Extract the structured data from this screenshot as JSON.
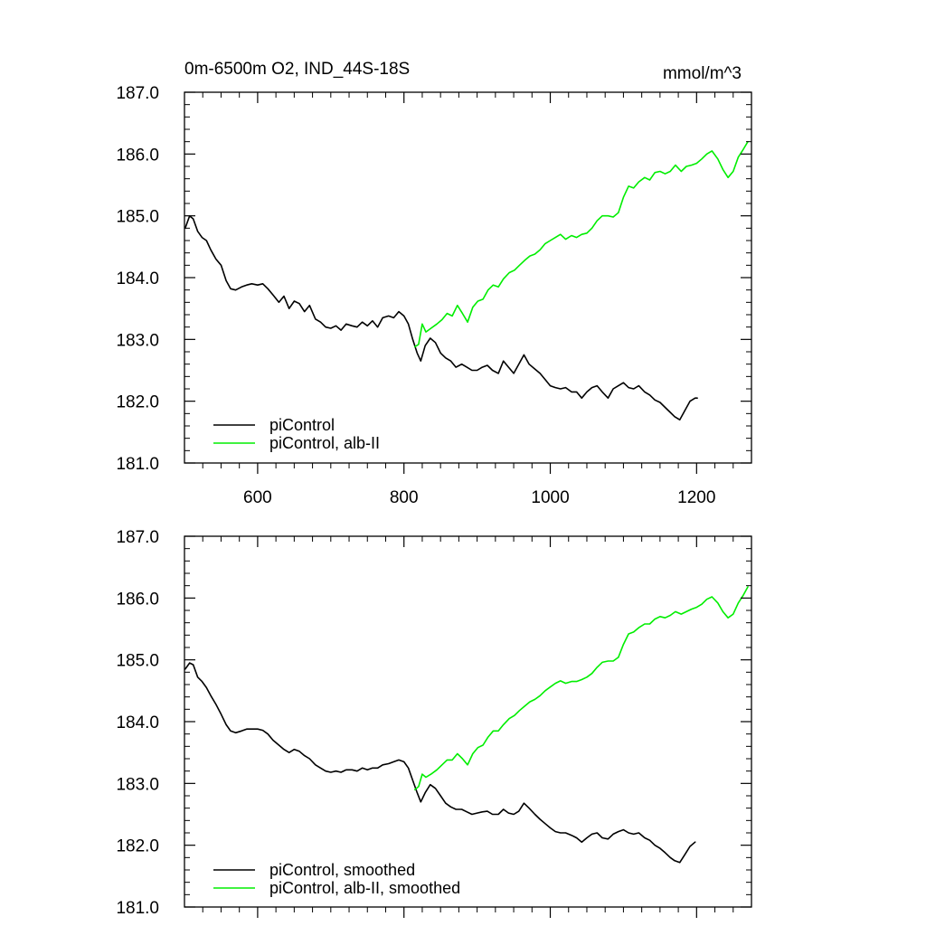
{
  "chart_data": [
    {
      "type": "line",
      "title": "0m-6500m O2, IND_44S-18S",
      "units": "mmol/m^3",
      "xlim": [
        500,
        1275
      ],
      "ylim": [
        181.0,
        187.0
      ],
      "x_ticks": [
        600,
        800,
        1000,
        1200
      ],
      "x_tick_labels": [
        "600",
        "800",
        "1000",
        "1200"
      ],
      "y_ticks": [
        181.0,
        182.0,
        183.0,
        184.0,
        185.0,
        186.0,
        187.0
      ],
      "y_tick_labels": [
        "181.0",
        "182.0",
        "183.0",
        "184.0",
        "185.0",
        "186.0",
        "187.0"
      ],
      "grid": false,
      "legend": "bottom-left",
      "series": [
        {
          "name": "piControl",
          "color": "#000000",
          "x": [
            501,
            507,
            512,
            518,
            524,
            530,
            536,
            543,
            550,
            557,
            563,
            570,
            578,
            585,
            592,
            600,
            607,
            614,
            621,
            629,
            636,
            643,
            650,
            657,
            664,
            671,
            679,
            686,
            693,
            700,
            707,
            714,
            721,
            729,
            736,
            743,
            750,
            757,
            764,
            771,
            779,
            786,
            793,
            800,
            806,
            812,
            818,
            823,
            829,
            836,
            843,
            850,
            857,
            864,
            871,
            879,
            886,
            893,
            900,
            907,
            914,
            921,
            929,
            936,
            943,
            950,
            957,
            964,
            971,
            979,
            986,
            993,
            1000,
            1007,
            1014,
            1021,
            1029,
            1036,
            1043,
            1050,
            1057,
            1064,
            1071,
            1079,
            1086,
            1093,
            1100,
            1107,
            1114,
            1121,
            1129,
            1136,
            1143,
            1150,
            1157,
            1164,
            1170,
            1177,
            1184,
            1191,
            1198,
            1201
          ],
          "y": [
            184.8,
            185.0,
            184.95,
            184.75,
            184.65,
            184.6,
            184.45,
            184.3,
            184.2,
            183.95,
            183.82,
            183.8,
            183.85,
            183.88,
            183.9,
            183.88,
            183.9,
            183.82,
            183.72,
            183.6,
            183.7,
            183.5,
            183.62,
            183.58,
            183.45,
            183.55,
            183.33,
            183.28,
            183.2,
            183.18,
            183.22,
            183.15,
            183.25,
            183.22,
            183.2,
            183.28,
            183.22,
            183.3,
            183.2,
            183.35,
            183.38,
            183.35,
            183.45,
            183.38,
            183.25,
            183.0,
            182.78,
            182.65,
            182.9,
            183.02,
            182.95,
            182.78,
            182.7,
            182.65,
            182.55,
            182.6,
            182.55,
            182.5,
            182.5,
            182.55,
            182.58,
            182.5,
            182.45,
            182.65,
            182.55,
            182.45,
            182.6,
            182.75,
            182.6,
            182.52,
            182.45,
            182.35,
            182.25,
            182.22,
            182.2,
            182.22,
            182.15,
            182.15,
            182.05,
            182.15,
            182.22,
            182.25,
            182.15,
            182.05,
            182.2,
            182.25,
            182.3,
            182.22,
            182.2,
            182.25,
            182.15,
            182.1,
            182.02,
            181.98,
            181.9,
            181.82,
            181.75,
            181.7,
            181.85,
            182.0,
            182.05,
            182.05
          ]
        },
        {
          "name": "piControl, alb-II",
          "color": "#00ee00",
          "x": [
            815,
            820,
            825,
            830,
            837,
            845,
            852,
            859,
            866,
            873,
            880,
            887,
            894,
            901,
            908,
            915,
            922,
            929,
            936,
            944,
            951,
            958,
            965,
            972,
            979,
            986,
            993,
            1000,
            1007,
            1014,
            1021,
            1029,
            1036,
            1043,
            1050,
            1057,
            1064,
            1071,
            1079,
            1086,
            1093,
            1100,
            1107,
            1114,
            1121,
            1129,
            1136,
            1143,
            1150,
            1157,
            1164,
            1171,
            1179,
            1186,
            1193,
            1200,
            1207,
            1214,
            1221,
            1229,
            1236,
            1243,
            1250,
            1257,
            1264,
            1270
          ],
          "y": [
            182.88,
            182.92,
            183.25,
            183.12,
            183.18,
            183.25,
            183.32,
            183.42,
            183.38,
            183.55,
            183.42,
            183.28,
            183.52,
            183.62,
            183.65,
            183.8,
            183.88,
            183.85,
            183.98,
            184.08,
            184.12,
            184.2,
            184.28,
            184.35,
            184.38,
            184.45,
            184.55,
            184.6,
            184.65,
            184.7,
            184.62,
            184.68,
            184.65,
            184.7,
            184.72,
            184.8,
            184.92,
            185.0,
            185.0,
            184.98,
            185.05,
            185.3,
            185.48,
            185.45,
            185.55,
            185.62,
            185.58,
            185.7,
            185.72,
            185.68,
            185.72,
            185.82,
            185.72,
            185.8,
            185.82,
            185.85,
            185.92,
            186.0,
            186.05,
            185.92,
            185.75,
            185.62,
            185.72,
            185.95,
            186.08,
            186.2
          ]
        }
      ]
    },
    {
      "type": "line",
      "title": "",
      "xlim": [
        500,
        1275
      ],
      "ylim": [
        181.0,
        187.0
      ],
      "x_ticks": [
        600,
        800,
        1000,
        1200
      ],
      "x_tick_labels": [],
      "y_ticks": [
        181.0,
        182.0,
        183.0,
        184.0,
        185.0,
        186.0,
        187.0
      ],
      "y_tick_labels": [
        "181.0",
        "182.0",
        "183.0",
        "184.0",
        "185.0",
        "186.0",
        "187.0"
      ],
      "grid": false,
      "legend": "bottom-left",
      "series": [
        {
          "name": "piControl, smoothed",
          "color": "#000000",
          "x": [
            501,
            507,
            512,
            518,
            524,
            530,
            536,
            543,
            550,
            557,
            563,
            570,
            578,
            585,
            592,
            600,
            607,
            614,
            621,
            629,
            636,
            643,
            650,
            657,
            664,
            671,
            679,
            686,
            693,
            700,
            707,
            714,
            721,
            729,
            736,
            743,
            750,
            757,
            764,
            771,
            779,
            786,
            793,
            800,
            806,
            812,
            818,
            823,
            829,
            836,
            843,
            850,
            857,
            864,
            871,
            879,
            886,
            893,
            900,
            907,
            914,
            921,
            929,
            936,
            943,
            950,
            957,
            964,
            971,
            979,
            986,
            993,
            1000,
            1007,
            1014,
            1021,
            1029,
            1036,
            1043,
            1050,
            1057,
            1064,
            1071,
            1079,
            1086,
            1093,
            1100,
            1107,
            1114,
            1121,
            1129,
            1136,
            1143,
            1150,
            1157,
            1164,
            1170,
            1177,
            1184,
            1191,
            1198
          ],
          "y": [
            184.85,
            184.95,
            184.92,
            184.72,
            184.65,
            184.55,
            184.42,
            184.28,
            184.12,
            183.95,
            183.85,
            183.82,
            183.85,
            183.88,
            183.88,
            183.88,
            183.86,
            183.8,
            183.7,
            183.62,
            183.55,
            183.5,
            183.55,
            183.52,
            183.45,
            183.4,
            183.3,
            183.25,
            183.2,
            183.18,
            183.2,
            183.18,
            183.22,
            183.22,
            183.2,
            183.25,
            183.22,
            183.25,
            183.25,
            183.3,
            183.32,
            183.35,
            183.38,
            183.35,
            183.25,
            183.05,
            182.85,
            182.7,
            182.85,
            182.98,
            182.92,
            182.8,
            182.68,
            182.62,
            182.58,
            182.58,
            182.54,
            182.5,
            182.52,
            182.54,
            182.55,
            182.5,
            182.5,
            182.58,
            182.52,
            182.5,
            182.55,
            182.68,
            182.6,
            182.5,
            182.42,
            182.35,
            182.28,
            182.22,
            182.2,
            182.2,
            182.16,
            182.12,
            182.05,
            182.12,
            182.18,
            182.2,
            182.12,
            182.1,
            182.18,
            182.22,
            182.25,
            182.2,
            182.18,
            182.2,
            182.12,
            182.08,
            182.0,
            181.95,
            181.88,
            181.8,
            181.75,
            181.72,
            181.85,
            181.98,
            182.05
          ]
        },
        {
          "name": "piControl, alb-II, smoothed",
          "color": "#00ee00",
          "x": [
            815,
            820,
            825,
            830,
            837,
            845,
            852,
            859,
            866,
            873,
            880,
            887,
            894,
            901,
            908,
            915,
            922,
            929,
            936,
            944,
            951,
            958,
            965,
            972,
            979,
            986,
            993,
            1000,
            1007,
            1014,
            1021,
            1029,
            1036,
            1043,
            1050,
            1057,
            1064,
            1071,
            1079,
            1086,
            1093,
            1100,
            1107,
            1114,
            1121,
            1129,
            1136,
            1143,
            1150,
            1157,
            1164,
            1171,
            1179,
            1186,
            1193,
            1200,
            1207,
            1214,
            1221,
            1229,
            1236,
            1243,
            1250,
            1257,
            1264,
            1270
          ],
          "y": [
            182.9,
            182.95,
            183.15,
            183.1,
            183.15,
            183.22,
            183.3,
            183.38,
            183.38,
            183.48,
            183.4,
            183.3,
            183.48,
            183.58,
            183.62,
            183.75,
            183.85,
            183.85,
            183.95,
            184.05,
            184.1,
            184.18,
            184.25,
            184.32,
            184.36,
            184.42,
            184.5,
            184.56,
            184.62,
            184.66,
            184.62,
            184.65,
            184.65,
            184.68,
            184.72,
            184.78,
            184.88,
            184.96,
            184.98,
            184.98,
            185.04,
            185.25,
            185.42,
            185.45,
            185.52,
            185.58,
            185.58,
            185.66,
            185.7,
            185.68,
            185.72,
            185.78,
            185.74,
            185.78,
            185.82,
            185.85,
            185.9,
            185.98,
            186.02,
            185.92,
            185.78,
            185.68,
            185.74,
            185.92,
            186.05,
            186.18
          ]
        }
      ]
    }
  ]
}
